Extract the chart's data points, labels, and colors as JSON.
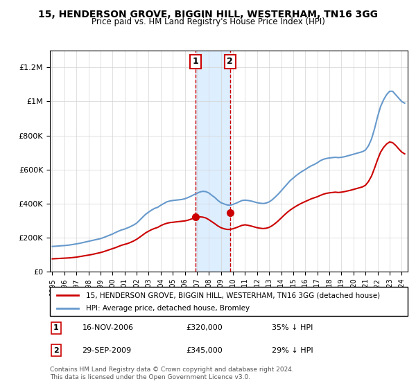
{
  "title1": "15, HENDERSON GROVE, BIGGIN HILL, WESTERHAM, TN16 3GG",
  "title2": "Price paid vs. HM Land Registry's House Price Index (HPI)",
  "legend_line1": "15, HENDERSON GROVE, BIGGIN HILL, WESTERHAM, TN16 3GG (detached house)",
  "legend_line2": "HPI: Average price, detached house, Bromley",
  "annotation1_label": "1",
  "annotation1_date": "16-NOV-2006",
  "annotation1_price": "£320,000",
  "annotation1_pct": "35% ↓ HPI",
  "annotation2_label": "2",
  "annotation2_date": "29-SEP-2009",
  "annotation2_price": "£345,000",
  "annotation2_pct": "29% ↓ HPI",
  "footnote": "Contains HM Land Registry data © Crown copyright and database right 2024.\nThis data is licensed under the Open Government Licence v3.0.",
  "sale1_year": 2006.88,
  "sale1_price": 320000,
  "sale2_year": 2009.75,
  "sale2_price": 345000,
  "line_color_property": "#cc0000",
  "line_color_hpi": "#6699cc",
  "shaded_color": "#ddeeff",
  "annotation_box_color": "#cc0000",
  "ylim_min": 0,
  "ylim_max": 1300000,
  "hpi_years": [
    1995,
    1995.25,
    1995.5,
    1995.75,
    1996,
    1996.25,
    1996.5,
    1996.75,
    1997,
    1997.25,
    1997.5,
    1997.75,
    1998,
    1998.25,
    1998.5,
    1998.75,
    1999,
    1999.25,
    1999.5,
    1999.75,
    2000,
    2000.25,
    2000.5,
    2000.75,
    2001,
    2001.25,
    2001.5,
    2001.75,
    2002,
    2002.25,
    2002.5,
    2002.75,
    2003,
    2003.25,
    2003.5,
    2003.75,
    2004,
    2004.25,
    2004.5,
    2004.75,
    2005,
    2005.25,
    2005.5,
    2005.75,
    2006,
    2006.25,
    2006.5,
    2006.75,
    2007,
    2007.25,
    2007.5,
    2007.75,
    2008,
    2008.25,
    2008.5,
    2008.75,
    2009,
    2009.25,
    2009.5,
    2009.75,
    2010,
    2010.25,
    2010.5,
    2010.75,
    2011,
    2011.25,
    2011.5,
    2011.75,
    2012,
    2012.25,
    2012.5,
    2012.75,
    2013,
    2013.25,
    2013.5,
    2013.75,
    2014,
    2014.25,
    2014.5,
    2014.75,
    2015,
    2015.25,
    2015.5,
    2015.75,
    2016,
    2016.25,
    2016.5,
    2016.75,
    2017,
    2017.25,
    2017.5,
    2017.75,
    2018,
    2018.25,
    2018.5,
    2018.75,
    2019,
    2019.25,
    2019.5,
    2019.75,
    2020,
    2020.25,
    2020.5,
    2020.75,
    2021,
    2021.25,
    2021.5,
    2021.75,
    2022,
    2022.25,
    2022.5,
    2022.75,
    2023,
    2023.25,
    2023.5,
    2023.75,
    2024,
    2024.25
  ],
  "hpi_values": [
    148000,
    149000,
    150500,
    152000,
    153000,
    155000,
    157000,
    160000,
    163000,
    166000,
    170000,
    174000,
    178000,
    182000,
    186000,
    190000,
    194000,
    200000,
    207000,
    214000,
    221000,
    230000,
    238000,
    245000,
    250000,
    257000,
    265000,
    274000,
    285000,
    302000,
    320000,
    337000,
    350000,
    362000,
    372000,
    378000,
    390000,
    400000,
    410000,
    415000,
    418000,
    420000,
    422000,
    424000,
    428000,
    435000,
    443000,
    452000,
    460000,
    468000,
    472000,
    470000,
    462000,
    448000,
    435000,
    418000,
    405000,
    398000,
    392000,
    390000,
    395000,
    402000,
    410000,
    418000,
    420000,
    418000,
    415000,
    410000,
    405000,
    402000,
    400000,
    403000,
    410000,
    422000,
    438000,
    455000,
    475000,
    495000,
    515000,
    535000,
    550000,
    565000,
    578000,
    590000,
    600000,
    612000,
    622000,
    630000,
    640000,
    652000,
    660000,
    665000,
    668000,
    670000,
    672000,
    670000,
    672000,
    675000,
    680000,
    685000,
    690000,
    695000,
    700000,
    705000,
    715000,
    740000,
    780000,
    840000,
    910000,
    970000,
    1010000,
    1040000,
    1060000,
    1060000,
    1040000,
    1020000,
    1000000,
    990000
  ],
  "prop_years": [
    1995,
    1995.25,
    1995.5,
    1995.75,
    1996,
    1996.25,
    1996.5,
    1996.75,
    1997,
    1997.25,
    1997.5,
    1997.75,
    1998,
    1998.25,
    1998.5,
    1998.75,
    1999,
    1999.25,
    1999.5,
    1999.75,
    2000,
    2000.25,
    2000.5,
    2000.75,
    2001,
    2001.25,
    2001.5,
    2001.75,
    2002,
    2002.25,
    2002.5,
    2002.75,
    2003,
    2003.25,
    2003.5,
    2003.75,
    2004,
    2004.25,
    2004.5,
    2004.75,
    2005,
    2005.25,
    2005.5,
    2005.75,
    2006,
    2006.25,
    2006.5,
    2006.75,
    2007,
    2007.25,
    2007.5,
    2007.75,
    2008,
    2008.25,
    2008.5,
    2008.75,
    2009,
    2009.25,
    2009.5,
    2009.75,
    2010,
    2010.25,
    2010.5,
    2010.75,
    2011,
    2011.25,
    2011.5,
    2011.75,
    2012,
    2012.25,
    2012.5,
    2012.75,
    2013,
    2013.25,
    2013.5,
    2013.75,
    2014,
    2014.25,
    2014.5,
    2014.75,
    2015,
    2015.25,
    2015.5,
    2015.75,
    2016,
    2016.25,
    2016.5,
    2016.75,
    2017,
    2017.25,
    2017.5,
    2017.75,
    2018,
    2018.25,
    2018.5,
    2018.75,
    2019,
    2019.25,
    2019.5,
    2019.75,
    2020,
    2020.25,
    2020.5,
    2020.75,
    2021,
    2021.25,
    2021.5,
    2021.75,
    2022,
    2022.25,
    2022.5,
    2022.75,
    2023,
    2023.25,
    2023.5,
    2023.75,
    2024,
    2024.25
  ],
  "prop_values": [
    75000,
    76000,
    77000,
    78000,
    79000,
    80000,
    81000,
    83000,
    85000,
    88000,
    91000,
    94000,
    97000,
    100000,
    104000,
    108000,
    112000,
    117000,
    123000,
    129000,
    135000,
    141000,
    148000,
    155000,
    160000,
    165000,
    172000,
    180000,
    190000,
    202000,
    215000,
    228000,
    238000,
    247000,
    254000,
    260000,
    270000,
    278000,
    284000,
    288000,
    290000,
    292000,
    294000,
    296000,
    298000,
    302000,
    308000,
    315000,
    320000,
    322000,
    320000,
    315000,
    305000,
    293000,
    281000,
    268000,
    258000,
    252000,
    248000,
    248000,
    252000,
    258000,
    265000,
    272000,
    275000,
    272000,
    268000,
    263000,
    258000,
    255000,
    253000,
    255000,
    260000,
    270000,
    283000,
    298000,
    315000,
    332000,
    348000,
    362000,
    374000,
    385000,
    395000,
    404000,
    412000,
    420000,
    428000,
    434000,
    440000,
    448000,
    455000,
    460000,
    463000,
    465000,
    467000,
    465000,
    467000,
    470000,
    474000,
    478000,
    483000,
    488000,
    493000,
    498000,
    508000,
    530000,
    562000,
    608000,
    658000,
    702000,
    730000,
    750000,
    762000,
    758000,
    742000,
    722000,
    703000,
    692000
  ]
}
